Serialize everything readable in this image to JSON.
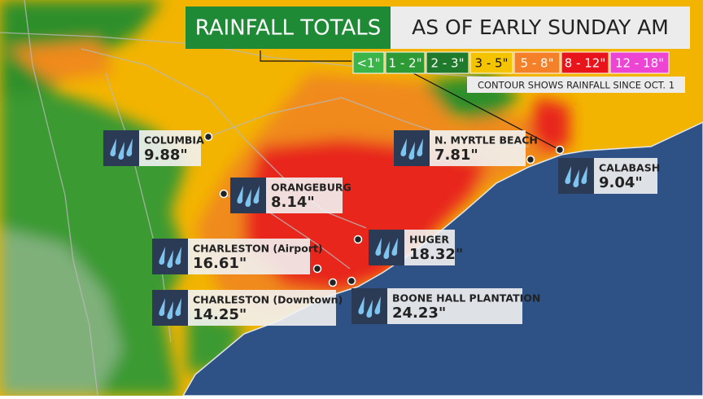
{
  "header": {
    "title": "RAINFALL TOTALS",
    "subtitle": "AS OF EARLY SUNDAY AM"
  },
  "legend": {
    "items": [
      {
        "label": "<1\"",
        "color": "#3bb54a"
      },
      {
        "label": "1 - 2\"",
        "color": "#2e9a35"
      },
      {
        "label": "2 - 3\"",
        "color": "#1f7a2c"
      },
      {
        "label": "3 - 5\"",
        "color": "#f5c400"
      },
      {
        "label": "5 - 8\"",
        "color": "#f4812a"
      },
      {
        "label": "8 - 12\"",
        "color": "#e8141b"
      },
      {
        "label": "12 - 18\"",
        "color": "#ec44d3"
      }
    ],
    "note": "CONTOUR SHOWS RAINFALL SINCE OCT. 1"
  },
  "stations": [
    {
      "name": "COLUMBIA",
      "total": "9.88\""
    },
    {
      "name": "ORANGEBURG",
      "total": "8.14\""
    },
    {
      "name": "CHARLESTON (Airport)",
      "total": "16.61\""
    },
    {
      "name": "CHARLESTON (Downtown)",
      "total": "14.25\""
    },
    {
      "name": "HUGER",
      "total": "18.32\""
    },
    {
      "name": "BOONE HALL PLANTATION",
      "total": "24.23\""
    },
    {
      "name": "N. MYRTLE BEACH",
      "total": "7.81\""
    },
    {
      "name": "CALABASH",
      "total": "9.04\""
    }
  ]
}
